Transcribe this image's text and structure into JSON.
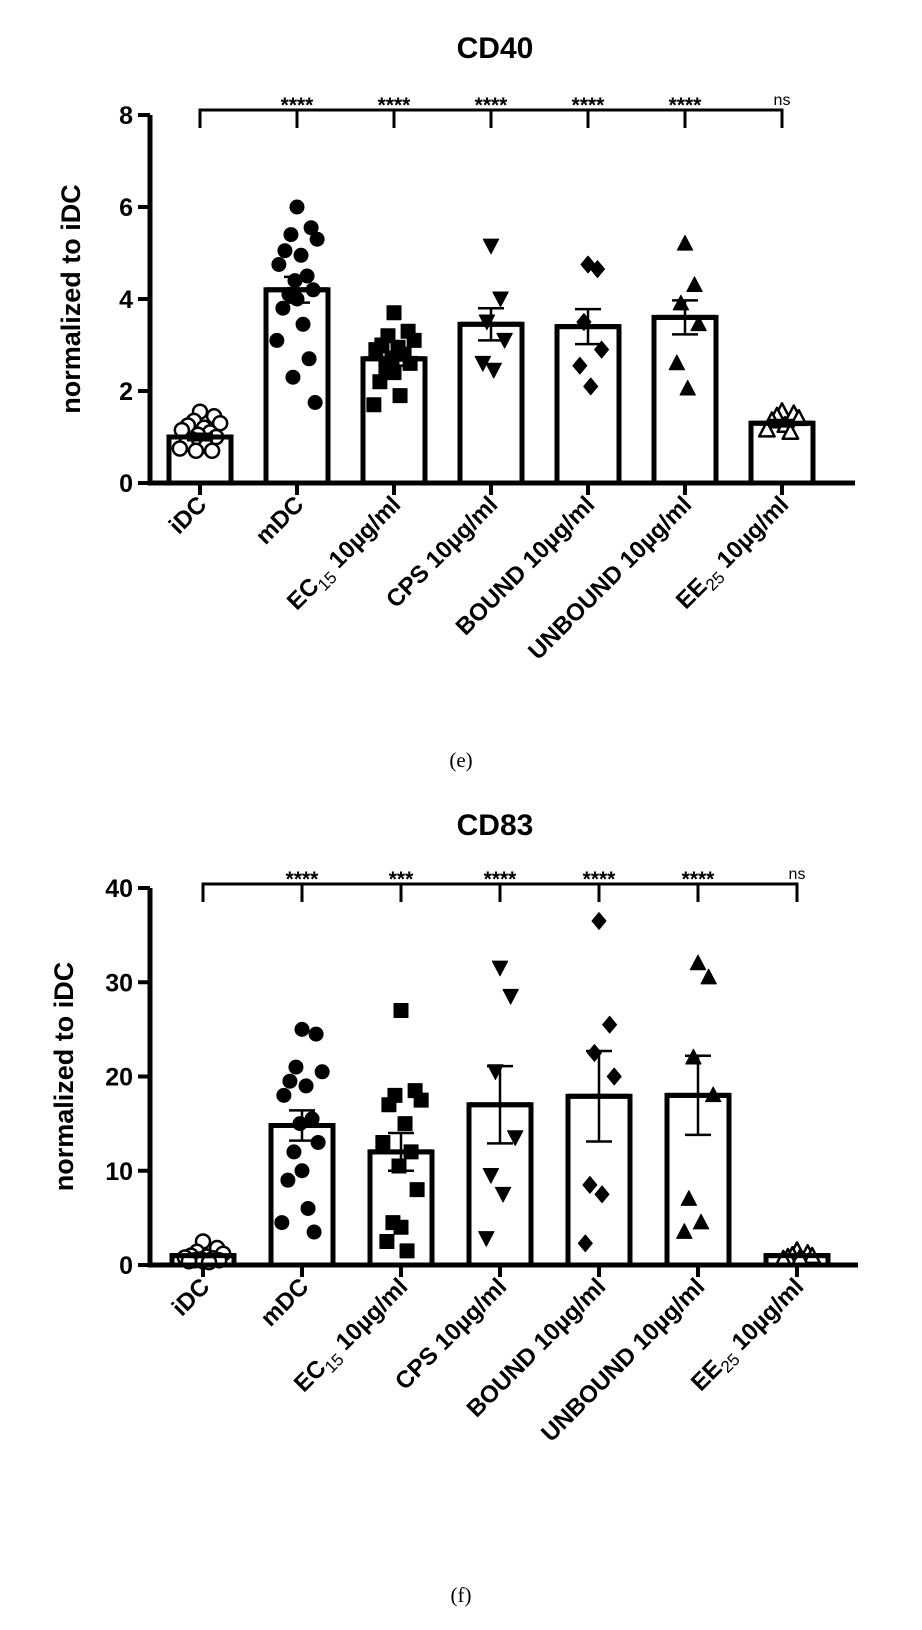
{
  "chart_data": [
    {
      "type": "bar",
      "panel": "(e)",
      "title": "CD40",
      "xlabel": "",
      "ylabel": "normalized to iDC",
      "ylim": [
        0,
        8
      ],
      "yticks": [
        0,
        2,
        4,
        6,
        8
      ],
      "categories": [
        {
          "main": "iDC"
        },
        {
          "main": "mDC"
        },
        {
          "main": "EC",
          "sub": "15",
          "suffix": " 10µg/ml"
        },
        {
          "main": "CPS 10µg/ml"
        },
        {
          "main": "BOUND 10µg/ml"
        },
        {
          "main": "UNBOUND 10µg/ml"
        },
        {
          "main": "EE",
          "sub": "25",
          "suffix": " 10µg/ml"
        }
      ],
      "values": [
        1.0,
        4.2,
        2.7,
        3.45,
        3.4,
        3.6,
        1.3
      ],
      "sem": [
        0.07,
        0.28,
        0.15,
        0.35,
        0.38,
        0.37,
        0.07
      ],
      "markers": [
        "circle-open",
        "circle",
        "square",
        "triangle-down",
        "diamond",
        "triangle-up",
        "triangle-open"
      ],
      "points": [
        [
          1.55,
          1.45,
          1.35,
          1.3,
          1.25,
          1.2,
          1.15,
          1.1,
          1.05,
          1.0,
          0.95,
          0.9,
          0.85,
          0.8,
          0.75,
          0.7,
          0.7
        ],
        [
          6.0,
          5.55,
          5.4,
          5.3,
          5.05,
          4.95,
          4.75,
          4.5,
          4.4,
          4.2,
          4.1,
          4.0,
          3.8,
          3.45,
          3.1,
          2.7,
          2.3,
          1.75
        ],
        [
          3.7,
          3.3,
          3.2,
          3.1,
          3.0,
          2.95,
          2.9,
          2.8,
          2.7,
          2.6,
          2.5,
          2.4,
          2.2,
          1.9,
          1.7
        ],
        [
          5.15,
          4.0,
          3.5,
          3.1,
          2.6,
          2.45
        ],
        [
          4.75,
          4.65,
          3.5,
          2.9,
          2.55,
          2.1
        ],
        [
          5.2,
          4.3,
          3.9,
          3.45,
          2.6,
          2.05
        ],
        [
          1.55,
          1.5,
          1.45,
          1.4,
          1.35,
          1.25,
          1.15,
          1.1
        ]
      ],
      "significance": [
        "****",
        "****",
        "****",
        "****",
        "****",
        "ns"
      ]
    },
    {
      "type": "bar",
      "panel": "(f)",
      "title": "CD83",
      "xlabel": "",
      "ylabel": "normalized to iDC",
      "ylim": [
        0,
        40
      ],
      "yticks": [
        0,
        10,
        20,
        30,
        40
      ],
      "categories": [
        {
          "main": "iDC"
        },
        {
          "main": "mDC"
        },
        {
          "main": "EC",
          "sub": "15",
          "suffix": " 10µg/ml"
        },
        {
          "main": "CPS 10µg/ml"
        },
        {
          "main": "BOUND 10µg/ml"
        },
        {
          "main": "UNBOUND 10µg/ml"
        },
        {
          "main": "EE",
          "sub": "25",
          "suffix": " 10µg/ml"
        }
      ],
      "values": [
        1.0,
        14.8,
        12.0,
        17.0,
        17.9,
        18.0,
        1.0
      ],
      "sem": [
        0.15,
        1.6,
        2.0,
        4.1,
        4.8,
        4.2,
        0.1
      ],
      "markers": [
        "circle-open",
        "circle",
        "square",
        "triangle-down",
        "diamond",
        "triangle-up",
        "triangle-open"
      ],
      "points": [
        [
          2.5,
          1.8,
          1.4,
          1.2,
          1.0,
          0.9,
          0.8,
          0.7,
          0.6,
          0.5,
          0.5,
          0.4,
          0.4,
          0.3
        ],
        [
          25.0,
          24.5,
          21.0,
          20.5,
          19.5,
          19.0,
          18.0,
          15.5,
          15.0,
          13.0,
          12.0,
          10.0,
          9.0,
          6.0,
          4.5,
          3.5
        ],
        [
          27.0,
          18.5,
          18.0,
          17.5,
          17.0,
          15.0,
          13.0,
          12.0,
          10.5,
          8.0,
          4.5,
          4.0,
          2.5,
          1.5
        ],
        [
          31.5,
          28.5,
          20.5,
          13.5,
          9.5,
          7.5,
          2.8
        ],
        [
          36.5,
          25.5,
          22.5,
          20.0,
          8.5,
          7.5,
          2.3
        ],
        [
          32.0,
          30.5,
          22.0,
          18.0,
          7.0,
          4.5,
          3.5
        ],
        [
          1.5,
          1.2,
          1.0,
          0.9,
          0.8,
          0.7,
          0.6
        ]
      ],
      "significance": [
        "****",
        "***",
        "****",
        "****",
        "****",
        "ns"
      ]
    }
  ]
}
